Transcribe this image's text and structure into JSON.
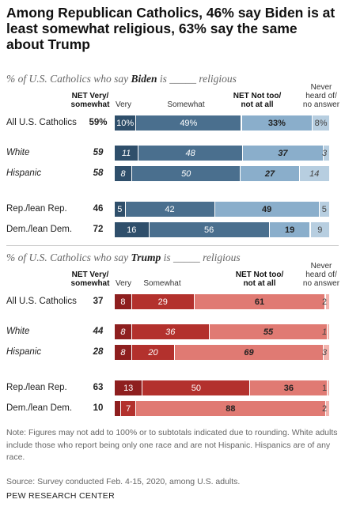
{
  "title": "Among Republican Catholics, 46% say Biden is at least somewhat religious, 63% say the same about Trump",
  "colors": {
    "biden": [
      "#2f4f6b",
      "#4a6f8e",
      "#8aaecb",
      "#b7cee0"
    ],
    "trump": [
      "#8e1f1f",
      "#b3312d",
      "#e07a73",
      "#f2b3ad"
    ]
  },
  "headers": {
    "net_very": "NET Very/ somewhat",
    "very": "Very",
    "somewhat": "Somewhat",
    "net_not": "NET Not too/ not at all",
    "never": "Never heard of/ no answer"
  },
  "notes": "Note: Figures may not add to 100% or to subtotals indicated due to rounding. White adults include those who report being only one race and are not Hispanic. Hispanics are of any race.",
  "source": "Source: Survey conducted Feb. 4-15, 2020, among U.S. adults.",
  "credit": "PEW RESEARCH CENTER",
  "chart_data": [
    {
      "type": "bar",
      "stacked": true,
      "orientation": "horizontal",
      "title": "% of U.S. Catholics who say Biden is _____ religious",
      "title_pre": "% of U.S. Catholics who say ",
      "title_name": "Biden",
      "title_post": " is _____ religious",
      "categories": [
        "All U.S. Catholics",
        "White",
        "Hispanic",
        "Rep./lean Rep.",
        "Dem./lean Dem."
      ],
      "net_very_somewhat": [
        "59%",
        "59",
        "58",
        "46",
        "72"
      ],
      "series": [
        {
          "name": "Very",
          "values": [
            10,
            11,
            8,
            5,
            16
          ],
          "labels": [
            "10%",
            "11",
            "8",
            "5",
            "16"
          ]
        },
        {
          "name": "Somewhat",
          "values": [
            49,
            48,
            50,
            42,
            56
          ],
          "labels": [
            "49%",
            "48",
            "50",
            "42",
            "56"
          ]
        },
        {
          "name": "NET Not too/ not at all",
          "values": [
            33,
            37,
            27,
            49,
            19
          ],
          "labels": [
            "33%",
            "37",
            "27",
            "49",
            "19"
          ]
        },
        {
          "name": "Never heard of/ no answer",
          "values": [
            8,
            3,
            14,
            5,
            9
          ],
          "labels": [
            "8%",
            "3",
            "14",
            "5",
            "9"
          ]
        }
      ]
    },
    {
      "type": "bar",
      "stacked": true,
      "orientation": "horizontal",
      "title": "% of U.S. Catholics who say Trump is _____ religious",
      "title_pre": "% of U.S. Catholics who say ",
      "title_name": "Trump",
      "title_post": " is _____ religious",
      "categories": [
        "All U.S. Catholics",
        "White",
        "Hispanic",
        "Rep./lean Rep.",
        "Dem./lean Dem."
      ],
      "net_very_somewhat": [
        "37",
        "44",
        "28",
        "63",
        "10"
      ],
      "series": [
        {
          "name": "Very",
          "values": [
            8,
            8,
            8,
            13,
            3
          ],
          "labels": [
            "8",
            "8",
            "8",
            "13",
            "3"
          ]
        },
        {
          "name": "Somewhat",
          "values": [
            29,
            36,
            20,
            50,
            7
          ],
          "labels": [
            "29",
            "36",
            "20",
            "50",
            "7"
          ]
        },
        {
          "name": "NET Not too/ not at all",
          "values": [
            61,
            55,
            69,
            36,
            88
          ],
          "labels": [
            "61",
            "55",
            "69",
            "36",
            "88"
          ]
        },
        {
          "name": "Never heard of/ no answer",
          "values": [
            2,
            1,
            3,
            1,
            2
          ],
          "labels": [
            "2",
            "1",
            "3",
            "1",
            "2"
          ]
        }
      ]
    }
  ]
}
